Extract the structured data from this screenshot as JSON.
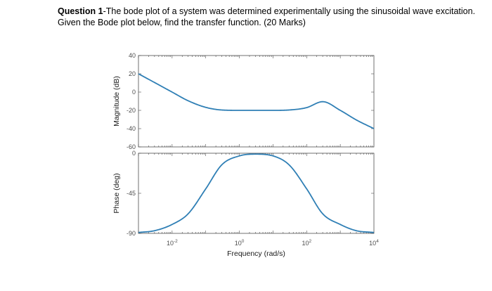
{
  "question": {
    "number": "Question 1",
    "text": "-The bode plot of a system was determined experimentally using the sinusoidal wave excitation. Given the Bode plot below, find the transfer function. (20 Marks)"
  },
  "colors": {
    "line": "#2f7fb5",
    "axis": "#4d4d4d",
    "background": "#ffffff"
  },
  "chart_data": [
    {
      "type": "line",
      "title": "",
      "xlabel": "",
      "ylabel": "Magnitude (dB)",
      "xscale": "log",
      "xlim": [
        0.001,
        10000
      ],
      "ylim": [
        -60,
        40
      ],
      "yticks": [
        40,
        20,
        0,
        -20,
        -40,
        -60
      ],
      "ytick_labels": [
        "40",
        "20",
        "0",
        "-20",
        "-40",
        "-60"
      ],
      "grid": false,
      "series": [
        {
          "x": [
            0.001,
            0.003,
            0.01,
            0.03,
            0.1,
            0.3,
            1,
            3,
            10,
            30,
            100,
            300,
            1000,
            3000,
            10000
          ],
          "values": [
            20,
            10.5,
            0,
            -9.5,
            -16.7,
            -19.6,
            -20,
            -20,
            -20,
            -19.6,
            -17,
            -10.5,
            -20,
            -30.5,
            -40
          ]
        }
      ]
    },
    {
      "type": "line",
      "title": "",
      "xlabel": "Frequency (rad/s)",
      "ylabel": "Phase (deg)",
      "xscale": "log",
      "xlim": [
        0.001,
        10000
      ],
      "ylim": [
        -90,
        0
      ],
      "yticks": [
        0,
        -45,
        -90
      ],
      "ytick_labels": [
        "0",
        "-45",
        "-90"
      ],
      "xticks": [
        0.01,
        1,
        100,
        10000
      ],
      "xtick_labels": [
        {
          "base": "10",
          "exp": "-2"
        },
        {
          "base": "10",
          "exp": "0"
        },
        {
          "base": "10",
          "exp": "2"
        },
        {
          "base": "10",
          "exp": "4"
        }
      ],
      "grid": false,
      "series": [
        {
          "x": [
            0.001,
            0.003,
            0.01,
            0.03,
            0.1,
            0.3,
            1,
            3,
            10,
            30,
            100,
            300,
            1000,
            3000,
            10000
          ],
          "values": [
            -89,
            -87,
            -80,
            -68,
            -40,
            -13,
            -3,
            -1,
            -3,
            -13,
            -40,
            -68,
            -80,
            -87,
            -89
          ]
        }
      ]
    }
  ]
}
